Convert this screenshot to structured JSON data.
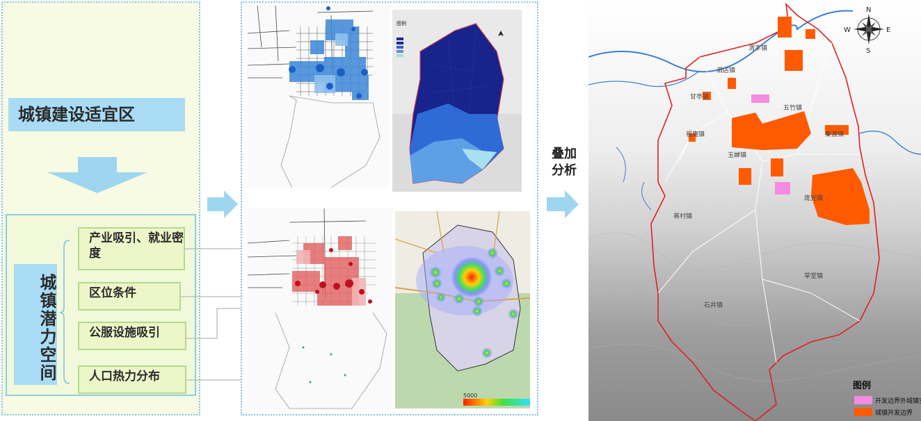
{
  "left": {
    "suitable_zone": "城镇建设适宜区",
    "potential_space": "城镇潜力空间",
    "factors": [
      "产业吸引、就业密度",
      "区位条件",
      "公服设施吸引",
      "人口热力分布"
    ]
  },
  "overlay": {
    "label": "叠加分析"
  },
  "heatmap": {
    "scale_label": "5000"
  },
  "mini_legend": {
    "title": "图例"
  },
  "final_map": {
    "legend_title": "图例",
    "legend_items": [
      {
        "label": "开发边界外城镇空",
        "color": "#f48be0"
      },
      {
        "label": "城镇开发边界",
        "color": "#ff5a00"
      }
    ],
    "compass": {
      "n": "N",
      "s": "S",
      "e": "E",
      "w": "W"
    },
    "towns": [
      "渭丰镇",
      "泗店镇",
      "甘亭镇",
      "五竹镇",
      "祖庵镇",
      "秦渡镇",
      "玉蝉镇",
      "蒋村镇",
      "庞光镇",
      "草堂镇",
      "石井镇"
    ]
  },
  "colors": {
    "accent_blue": "#a9dcf4",
    "boundary_red": "#e02020",
    "dev_orange": "#ff5a00",
    "arrow_blue": "#9ed6f0"
  }
}
